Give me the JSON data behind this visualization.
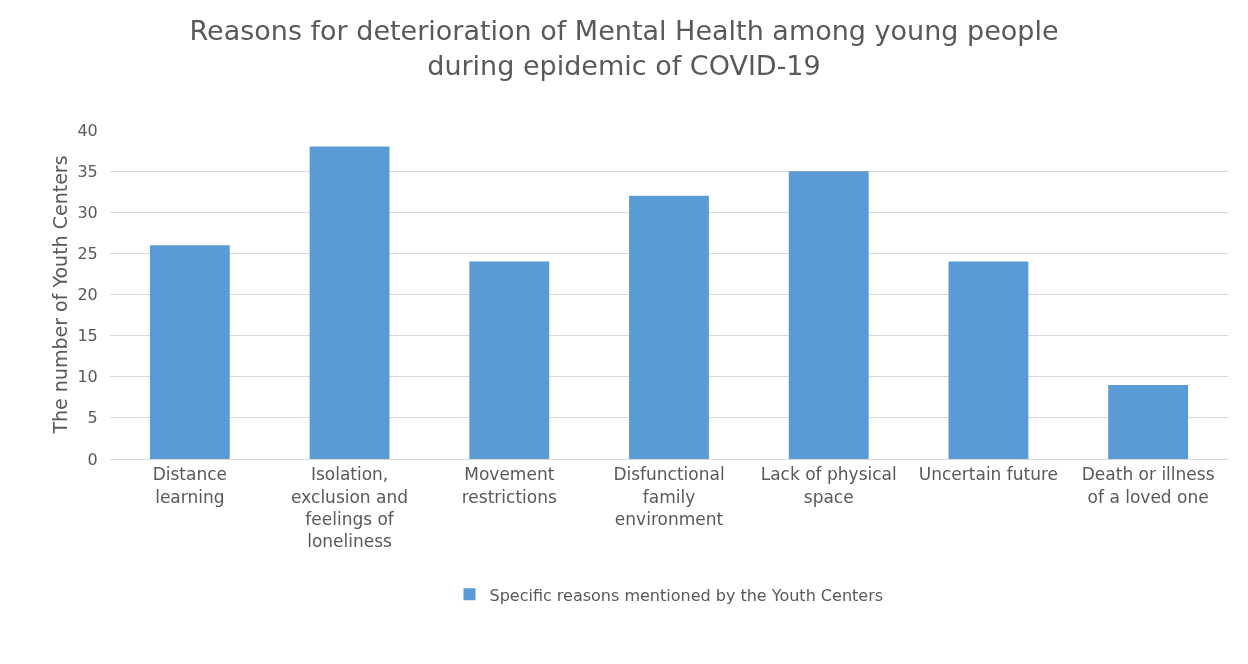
{
  "chart_data": {
    "type": "bar",
    "title": "Reasons for deterioration of Mental Health among young people during epidemic of COVID-19",
    "categories": [
      "Distance learning",
      "Isolation, exclusion and feelings of loneliness",
      "Movement restrictions",
      "Disfunctional family environment",
      "Lack of physical space",
      "Uncertain future",
      "Death or illness of a loved one"
    ],
    "series": [
      {
        "name": "Specific reasons mentioned by the Youth Centers",
        "color": "#5b9bd5",
        "values": [
          26,
          38,
          24,
          32,
          35,
          24,
          9
        ]
      }
    ],
    "ylabel": "The number of Youth Centers",
    "ylim": [
      0,
      40
    ],
    "yticks": [
      0,
      5,
      10,
      15,
      20,
      25,
      30,
      35,
      40
    ],
    "grid": "y",
    "legend": "bottom"
  }
}
